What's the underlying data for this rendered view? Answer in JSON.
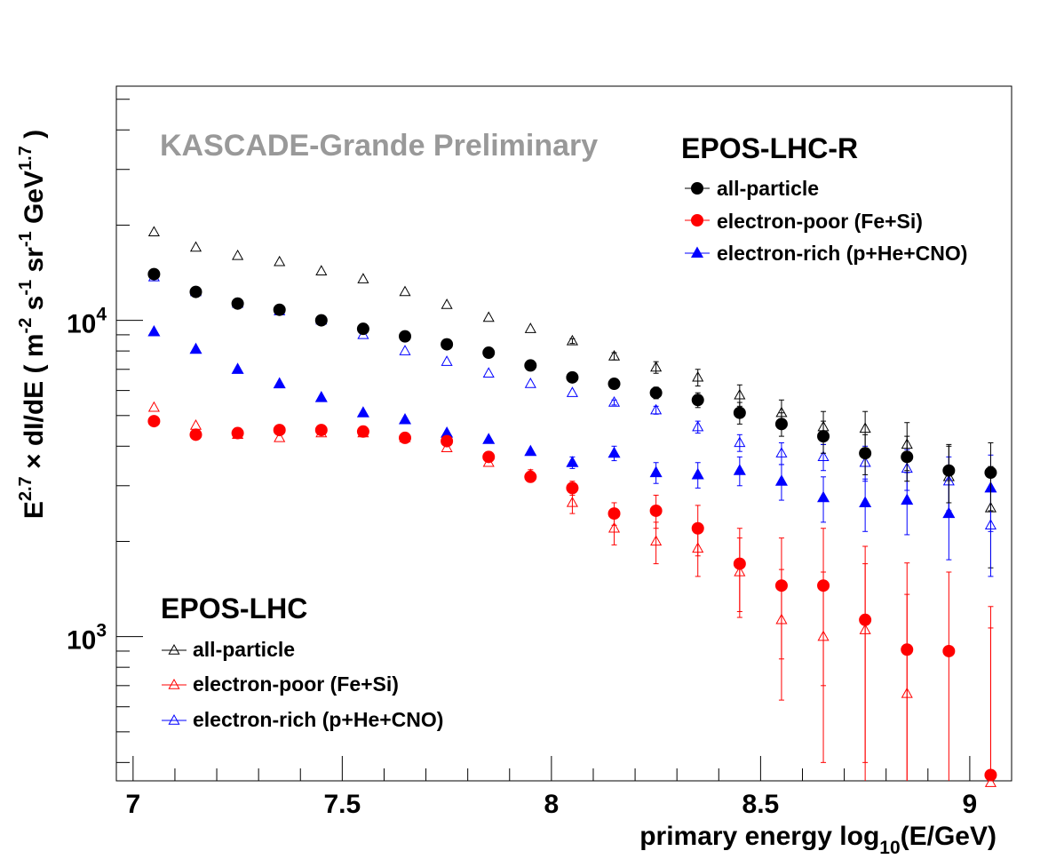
{
  "chart_data": {
    "type": "scatter",
    "x_scale": "linear",
    "y_scale": "log",
    "xlim": [
      6.96,
      9.1
    ],
    "ylim": [
      350,
      55000
    ],
    "x_ticks": [
      7,
      7.5,
      8,
      8.5,
      9
    ],
    "x_tick_labels": [
      "7",
      "7.5",
      "8",
      "8.5",
      "9"
    ],
    "y_ticks": [
      1000,
      10000
    ],
    "y_tick_labels": [
      {
        "base": "10",
        "exp": "3"
      },
      {
        "base": "10",
        "exp": "4"
      }
    ],
    "xlabel": {
      "main": "primary energy log",
      "sub": "10",
      "tail": "(E/GeV)"
    },
    "ylabel": {
      "parts": [
        {
          "t": "E",
          "s": "normal"
        },
        {
          "t": "2.7",
          "s": "sup"
        },
        {
          "t": " × dI/dE ( m",
          "s": "normal"
        },
        {
          "t": "-2",
          "s": "sup"
        },
        {
          "t": " s",
          "s": "normal"
        },
        {
          "t": "-1",
          "s": "sup"
        },
        {
          "t": " sr",
          "s": "normal"
        },
        {
          "t": "-1",
          "s": "sup"
        },
        {
          "t": " GeV",
          "s": "normal"
        },
        {
          "t": "1.7",
          "s": "sup"
        },
        {
          "t": " )",
          "s": "normal"
        }
      ]
    },
    "watermark": "KASCADE-Grande Preliminary",
    "watermark_color": "#999999",
    "x": [
      7.05,
      7.15,
      7.25,
      7.35,
      7.45,
      7.55,
      7.65,
      7.75,
      7.85,
      7.95,
      8.05,
      8.15,
      8.25,
      8.35,
      8.45,
      8.55,
      8.65,
      8.75,
      8.85,
      8.95,
      9.05
    ],
    "legends": [
      {
        "title": "EPOS-LHC-R",
        "position": "top-right",
        "entries": [
          {
            "label": "all-particle",
            "series": 0
          },
          {
            "label": "electron-poor (Fe+Si)",
            "series": 1
          },
          {
            "label": "electron-rich (p+He+CNO)",
            "series": 2
          }
        ]
      },
      {
        "title": "EPOS-LHC",
        "position": "bottom-left",
        "entries": [
          {
            "label": "all-particle",
            "series": 3
          },
          {
            "label": "electron-poor (Fe+Si)",
            "series": 4
          },
          {
            "label": "electron-rich (p+He+CNO)",
            "series": 5
          }
        ]
      }
    ],
    "series": [
      {
        "model": "EPOS-LHC-R",
        "name": "all-particle",
        "color": "#000000",
        "marker": "circle",
        "filled": true,
        "values": [
          14000,
          12300,
          11300,
          10800,
          10000,
          9400,
          8900,
          8400,
          7900,
          7200,
          6600,
          6300,
          5900,
          5600,
          5100,
          4700,
          4300,
          3800,
          3700,
          3350,
          3300
        ],
        "errors": [
          0,
          0,
          0,
          0,
          0,
          0,
          0,
          0,
          0,
          0,
          100,
          150,
          250,
          300,
          400,
          400,
          500,
          550,
          600,
          700,
          800
        ]
      },
      {
        "model": "EPOS-LHC-R",
        "name": "electron-poor (Fe+Si)",
        "color": "#ff0000",
        "marker": "circle",
        "filled": true,
        "values": [
          4800,
          4350,
          4400,
          4500,
          4500,
          4450,
          4250,
          4150,
          3700,
          3200,
          2950,
          2450,
          2500,
          2200,
          1700,
          1450,
          1450,
          1130,
          910,
          900,
          365
        ],
        "errors": [
          0,
          0,
          0,
          0,
          0,
          0,
          0,
          0,
          0,
          120,
          150,
          200,
          300,
          400,
          500,
          600,
          750,
          800,
          800,
          700,
          700
        ]
      },
      {
        "model": "EPOS-LHC-R",
        "name": "electron-rich (p+He+CNO)",
        "color": "#0000ff",
        "marker": "triangle",
        "filled": true,
        "values": [
          9200,
          8100,
          7000,
          6300,
          5700,
          5100,
          4850,
          4400,
          4200,
          3850,
          3550,
          3800,
          3300,
          3250,
          3350,
          3100,
          2750,
          2650,
          2700,
          2450,
          2950
        ],
        "errors": [
          0,
          0,
          0,
          0,
          0,
          0,
          0,
          0,
          0,
          0,
          150,
          200,
          250,
          300,
          350,
          400,
          450,
          500,
          600,
          700,
          800
        ]
      },
      {
        "model": "EPOS-LHC",
        "name": "all-particle",
        "color": "#000000",
        "marker": "triangle",
        "filled": false,
        "values": [
          19000,
          17000,
          16000,
          15300,
          14300,
          13500,
          12300,
          11200,
          10200,
          9400,
          8600,
          7700,
          7100,
          6600,
          5800,
          5100,
          4600,
          4550,
          4050,
          3200,
          2550
        ],
        "errors": [
          0,
          0,
          0,
          0,
          0,
          0,
          0,
          0,
          0,
          0,
          150,
          200,
          300,
          400,
          450,
          500,
          550,
          600,
          700,
          800,
          900
        ]
      },
      {
        "model": "EPOS-LHC",
        "name": "electron-poor (Fe+Si)",
        "color": "#ff0000",
        "marker": "triangle",
        "filled": false,
        "values": [
          5300,
          4650,
          4350,
          4250,
          4400,
          4400,
          4250,
          3950,
          3550,
          3250,
          2650,
          2200,
          2000,
          1900,
          1600,
          1130,
          1000,
          1050,
          660,
          null,
          345
        ],
        "errors": [
          0,
          0,
          0,
          0,
          0,
          0,
          0,
          0,
          0,
          120,
          200,
          250,
          300,
          350,
          450,
          500,
          600,
          650,
          700,
          0,
          900
        ]
      },
      {
        "model": "EPOS-LHC",
        "name": "electron-rich (p+He+CNO)",
        "color": "#0000ff",
        "marker": "triangle",
        "filled": false,
        "values": [
          13700,
          12300,
          11300,
          10700,
          10000,
          9000,
          8000,
          7400,
          6800,
          6300,
          5900,
          5500,
          5200,
          4600,
          4100,
          3800,
          3700,
          3550,
          3400,
          3100,
          2250
        ],
        "errors": [
          0,
          0,
          0,
          0,
          0,
          0,
          0,
          0,
          0,
          0,
          0,
          100,
          150,
          200,
          250,
          300,
          350,
          450,
          500,
          600,
          700
        ]
      }
    ]
  }
}
